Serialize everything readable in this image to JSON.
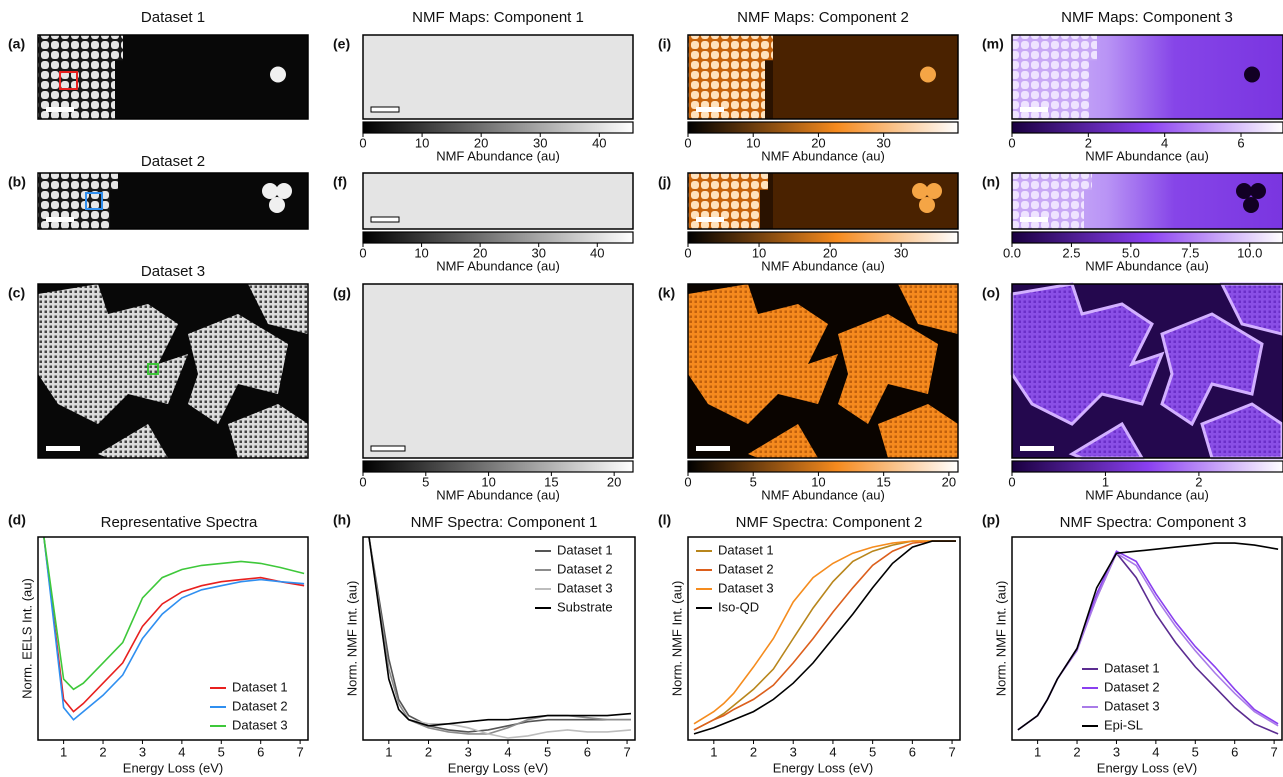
{
  "maps": [
    {
      "label": "(a)",
      "title": "Dataset 1"
    },
    {
      "label": "(b)",
      "title": "Dataset 2"
    },
    {
      "label": "(c)",
      "title": "Dataset 3"
    },
    {
      "label": "(e)",
      "title": "NMF Maps: Component 1",
      "colorbar": {
        "label": "NMF Abundance (au)",
        "lim": [
          0,
          45.7
        ],
        "ticks": [
          0,
          10,
          20,
          30,
          40
        ]
      }
    },
    {
      "label": "(f)",
      "colorbar": {
        "label": "NMF Abundance (au)",
        "lim": [
          0,
          46.1
        ],
        "ticks": [
          0,
          10,
          20,
          30,
          40
        ]
      }
    },
    {
      "label": "(g)",
      "colorbar": {
        "label": "NMF Abundance (au)",
        "lim": [
          0,
          21.5
        ],
        "ticks": [
          0,
          5,
          10,
          15,
          20
        ]
      }
    },
    {
      "label": "(i)",
      "title": "NMF Maps: Component 2",
      "colorbar": {
        "label": "NMF Abundance (au)",
        "lim": [
          0,
          41.4
        ],
        "ticks": [
          0,
          10,
          20,
          30
        ]
      }
    },
    {
      "label": "(j)",
      "colorbar": {
        "label": "NMF Abundance (au)",
        "lim": [
          0,
          38
        ],
        "ticks": [
          0,
          10,
          20,
          30
        ]
      }
    },
    {
      "label": "(k)",
      "colorbar": {
        "label": "NMF Abundance (au)",
        "lim": [
          0,
          20.7
        ],
        "ticks": [
          0,
          5,
          10,
          15,
          20
        ]
      }
    },
    {
      "label": "(m)",
      "title": "NMF Maps: Component 3",
      "colorbar": {
        "label": "NMF Abundance (au)",
        "lim": [
          0,
          7.1
        ],
        "ticks": [
          0,
          2,
          4,
          6
        ]
      }
    },
    {
      "label": "(n)",
      "colorbar": {
        "label": "NMF Abundance (au)",
        "lim": [
          0,
          11.4
        ],
        "ticks": [
          {
            "value": 0,
            "label": "0.0"
          },
          2.5,
          {
            "value": 5,
            "label": "5.0"
          },
          7.5,
          {
            "value": 10,
            "label": "10.0"
          }
        ]
      }
    },
    {
      "label": "(o)",
      "colorbar": {
        "label": "NMF Abundance (au)",
        "lim": [
          0,
          2.9
        ],
        "ticks": [
          0,
          1,
          2
        ]
      }
    }
  ],
  "chart_data": [
    {
      "type": "line",
      "label": "(d)",
      "title": "Representative Spectra",
      "x_label": "Energy Loss (eV)",
      "y_label": "Norm. EELS Int. (au)",
      "x": [
        0.5,
        1,
        1.25,
        1.5,
        2,
        2.5,
        3,
        3.5,
        4,
        4.5,
        5,
        5.5,
        6,
        6.5,
        7.1
      ],
      "xlim": [
        0.35,
        7.2
      ],
      "xticks": [
        1,
        2,
        3,
        4,
        5,
        6,
        7
      ],
      "ylim": [
        0,
        1
      ],
      "legend": "lower right",
      "series": [
        {
          "name": "Dataset 1",
          "color": "#e8201f",
          "values": [
            1.0,
            0.2,
            0.14,
            0.18,
            0.28,
            0.38,
            0.56,
            0.67,
            0.73,
            0.76,
            0.78,
            0.79,
            0.8,
            0.78,
            0.76
          ]
        },
        {
          "name": "Dataset 2",
          "color": "#2f8ff0",
          "values": [
            1.0,
            0.16,
            0.1,
            0.14,
            0.22,
            0.32,
            0.5,
            0.62,
            0.7,
            0.74,
            0.76,
            0.78,
            0.79,
            0.78,
            0.77
          ]
        },
        {
          "name": "Dataset 3",
          "color": "#3ec83a",
          "values": [
            1.0,
            0.3,
            0.25,
            0.28,
            0.38,
            0.48,
            0.7,
            0.8,
            0.84,
            0.86,
            0.87,
            0.88,
            0.87,
            0.85,
            0.82
          ]
        }
      ]
    },
    {
      "type": "line",
      "label": "(h)",
      "title": "NMF Spectra: Component 1",
      "x_label": "Energy Loss (eV)",
      "y_label": "Norm. NMF Int. (au)",
      "x": [
        0.5,
        1,
        1.25,
        1.5,
        2,
        2.5,
        3,
        3.5,
        4,
        4.5,
        5,
        5.5,
        6,
        6.5,
        7.1
      ],
      "xlim": [
        0.35,
        7.2
      ],
      "xticks": [
        1,
        2,
        3,
        4,
        5,
        6,
        7
      ],
      "ylim": [
        0,
        1
      ],
      "legend": "upper right",
      "series": [
        {
          "name": "Dataset 1",
          "color": "#555555",
          "values": [
            1,
            0.4,
            0.2,
            0.12,
            0.07,
            0.05,
            0.04,
            0.05,
            0.07,
            0.09,
            0.1,
            0.1,
            0.1,
            0.1,
            0.1
          ]
        },
        {
          "name": "Dataset 2",
          "color": "#8c8c8c",
          "values": [
            1,
            0.35,
            0.18,
            0.1,
            0.06,
            0.04,
            0.03,
            0.03,
            0.06,
            0.1,
            0.12,
            0.12,
            0.11,
            0.1,
            0.1
          ]
        },
        {
          "name": "Dataset 3",
          "color": "#bdbdbd",
          "values": [
            1,
            0.3,
            0.15,
            0.1,
            0.08,
            0.08,
            0.06,
            0.03,
            0.01,
            0.02,
            0.04,
            0.05,
            0.04,
            0.04,
            0.05
          ]
        },
        {
          "name": "Substrate",
          "color": "#000000",
          "values": [
            1,
            0.3,
            0.15,
            0.1,
            0.07,
            0.08,
            0.09,
            0.1,
            0.1,
            0.11,
            0.12,
            0.12,
            0.12,
            0.12,
            0.13
          ]
        }
      ]
    },
    {
      "type": "line",
      "label": "(l)",
      "title": "NMF Spectra: Component 2",
      "x_label": "Energy Loss (eV)",
      "y_label": "Norm. NMF Int. (au)",
      "x": [
        0.5,
        1,
        1.25,
        1.5,
        2,
        2.5,
        3,
        3.5,
        4,
        4.5,
        5,
        5.5,
        6,
        6.5,
        7.1
      ],
      "xlim": [
        0.35,
        7.2
      ],
      "xticks": [
        1,
        2,
        3,
        4,
        5,
        6,
        7
      ],
      "ylim": [
        0,
        1
      ],
      "legend": "upper left",
      "series": [
        {
          "name": "Dataset 1",
          "color": "#b8861c",
          "values": [
            0.05,
            0.1,
            0.13,
            0.17,
            0.25,
            0.35,
            0.5,
            0.65,
            0.78,
            0.88,
            0.93,
            0.96,
            0.98,
            0.98,
            0.98
          ]
        },
        {
          "name": "Dataset 2",
          "color": "#dc5f1c",
          "values": [
            0.05,
            0.1,
            0.12,
            0.15,
            0.2,
            0.27,
            0.38,
            0.5,
            0.63,
            0.75,
            0.86,
            0.93,
            0.97,
            0.98,
            0.98
          ]
        },
        {
          "name": "Dataset 3",
          "color": "#f58c1e",
          "values": [
            0.08,
            0.14,
            0.18,
            0.23,
            0.36,
            0.5,
            0.68,
            0.8,
            0.87,
            0.92,
            0.95,
            0.97,
            0.98,
            0.98,
            0.98
          ]
        },
        {
          "name": "Iso-QD",
          "color": "#000000",
          "values": [
            0.03,
            0.06,
            0.08,
            0.1,
            0.14,
            0.2,
            0.28,
            0.38,
            0.5,
            0.62,
            0.75,
            0.87,
            0.95,
            0.98,
            0.98
          ]
        }
      ]
    },
    {
      "type": "line",
      "label": "(p)",
      "title": "NMF Spectra: Component 3",
      "x_label": "Energy Loss (eV)",
      "y_label": "Norm. NMF Int. (au)",
      "x": [
        0.5,
        1,
        1.25,
        1.5,
        2,
        2.5,
        3,
        3.5,
        4,
        4.5,
        5,
        5.5,
        6,
        6.5,
        7.1
      ],
      "xlim": [
        0.35,
        7.2
      ],
      "xticks": [
        1,
        2,
        3,
        4,
        5,
        6,
        7
      ],
      "ylim": [
        0,
        1
      ],
      "legend": "lower center",
      "series": [
        {
          "name": "Dataset 1",
          "color": "#5b2c91",
          "values": [
            0.05,
            0.12,
            0.2,
            0.3,
            0.45,
            0.7,
            0.92,
            0.8,
            0.62,
            0.48,
            0.36,
            0.26,
            0.16,
            0.08,
            0.03
          ]
        },
        {
          "name": "Dataset 2",
          "color": "#8a3ff0",
          "values": [
            0.05,
            0.12,
            0.2,
            0.3,
            0.45,
            0.72,
            0.93,
            0.88,
            0.72,
            0.58,
            0.46,
            0.36,
            0.25,
            0.15,
            0.08
          ]
        },
        {
          "name": "Dataset 3",
          "color": "#a97be8",
          "values": [
            0.05,
            0.12,
            0.2,
            0.3,
            0.44,
            0.7,
            0.92,
            0.86,
            0.7,
            0.56,
            0.44,
            0.33,
            0.23,
            0.14,
            0.07
          ]
        },
        {
          "name": "Epi-SL",
          "color": "#000000",
          "values": [
            0.05,
            0.12,
            0.2,
            0.3,
            0.45,
            0.75,
            0.92,
            0.93,
            0.94,
            0.95,
            0.96,
            0.97,
            0.97,
            0.96,
            0.94
          ]
        }
      ]
    }
  ]
}
